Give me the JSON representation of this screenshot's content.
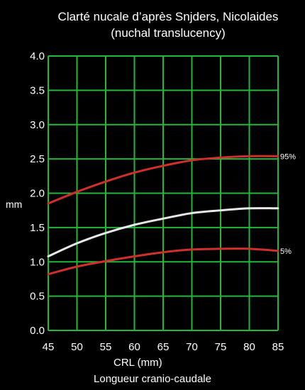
{
  "chart_data": {
    "type": "line",
    "title": "Clarté nucale d’après Snjders, Nicolaides",
    "subtitle": "(nuchal translucency)",
    "xlabel": "CRL (mm)",
    "ylabel": "mm",
    "caption": "Longueur cranio-caudale",
    "xlim": [
      45,
      85
    ],
    "ylim": [
      0.0,
      4.0
    ],
    "x_ticks": [
      "45",
      "50",
      "55",
      "60",
      "65",
      "70",
      "75",
      "80",
      "85"
    ],
    "y_ticks": [
      "0.0",
      "0.5",
      "1.0",
      "1.5",
      "2.0",
      "2.5",
      "3.0",
      "3.5",
      "4.0"
    ],
    "grid": true,
    "series": [
      {
        "name": "95%",
        "color": "#d0302a",
        "x": [
          45,
          50,
          55,
          60,
          65,
          70,
          75,
          80,
          85
        ],
        "y": [
          1.85,
          2.02,
          2.17,
          2.3,
          2.4,
          2.48,
          2.52,
          2.54,
          2.54
        ]
      },
      {
        "name": "",
        "color": "#e8e8e8",
        "x": [
          45,
          50,
          55,
          60,
          65,
          70,
          75,
          80,
          85
        ],
        "y": [
          1.08,
          1.27,
          1.42,
          1.54,
          1.63,
          1.71,
          1.75,
          1.78,
          1.78
        ]
      },
      {
        "name": "5%",
        "color": "#d0302a",
        "x": [
          45,
          50,
          55,
          60,
          65,
          70,
          75,
          80,
          85
        ],
        "y": [
          0.82,
          0.93,
          1.01,
          1.08,
          1.14,
          1.18,
          1.19,
          1.19,
          1.16
        ]
      }
    ],
    "grid_color": "#22b83a",
    "text_color": "#ffffff",
    "background": "#000000"
  }
}
